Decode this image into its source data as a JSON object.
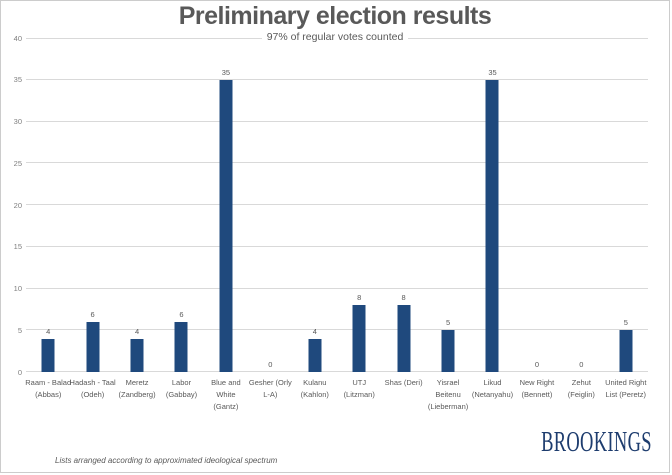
{
  "header": {
    "title": "Preliminary election results",
    "subtitle": "97% of regular votes counted"
  },
  "footer": {
    "note": "Lists arranged according to approximated ideological spectrum",
    "brand": "BROOKINGS"
  },
  "colors": {
    "bar": "#1F497D",
    "grid": "#D9D9D9",
    "text_gray": "#595959",
    "tick_gray": "#7F7F7F",
    "brand_navy": "#1D3C6E"
  },
  "chart_data": {
    "type": "bar",
    "title": "Preliminary election results",
    "subtitle": "97% of regular votes counted",
    "xlabel": "",
    "ylabel": "",
    "categories": [
      "Raam - Balad\n(Abbas)",
      "Hadash - Taal\n(Odeh)",
      "Meretz\n(Zandberg)",
      "Labor\n(Gabbay)",
      "Blue and\nWhite\n(Gantz)",
      "Gesher (Orly\nL-A)",
      "Kulanu\n(Kahlon)",
      "UTJ\n(Litzman)",
      "Shas (Deri)",
      "Yisrael\nBeitenu\n(Lieberman)",
      "Likud\n(Netanyahu)",
      "New Right\n(Bennett)",
      "Zehut\n(Feiglin)",
      "United Right\nList (Peretz)"
    ],
    "values": [
      4,
      6,
      4,
      6,
      35,
      0,
      4,
      8,
      8,
      5,
      35,
      0,
      0,
      5
    ],
    "ylim": [
      0,
      40
    ],
    "ytick_step": 5,
    "grid": true,
    "legend": "none",
    "annotation": "Lists arranged according to approximated ideological spectrum"
  }
}
